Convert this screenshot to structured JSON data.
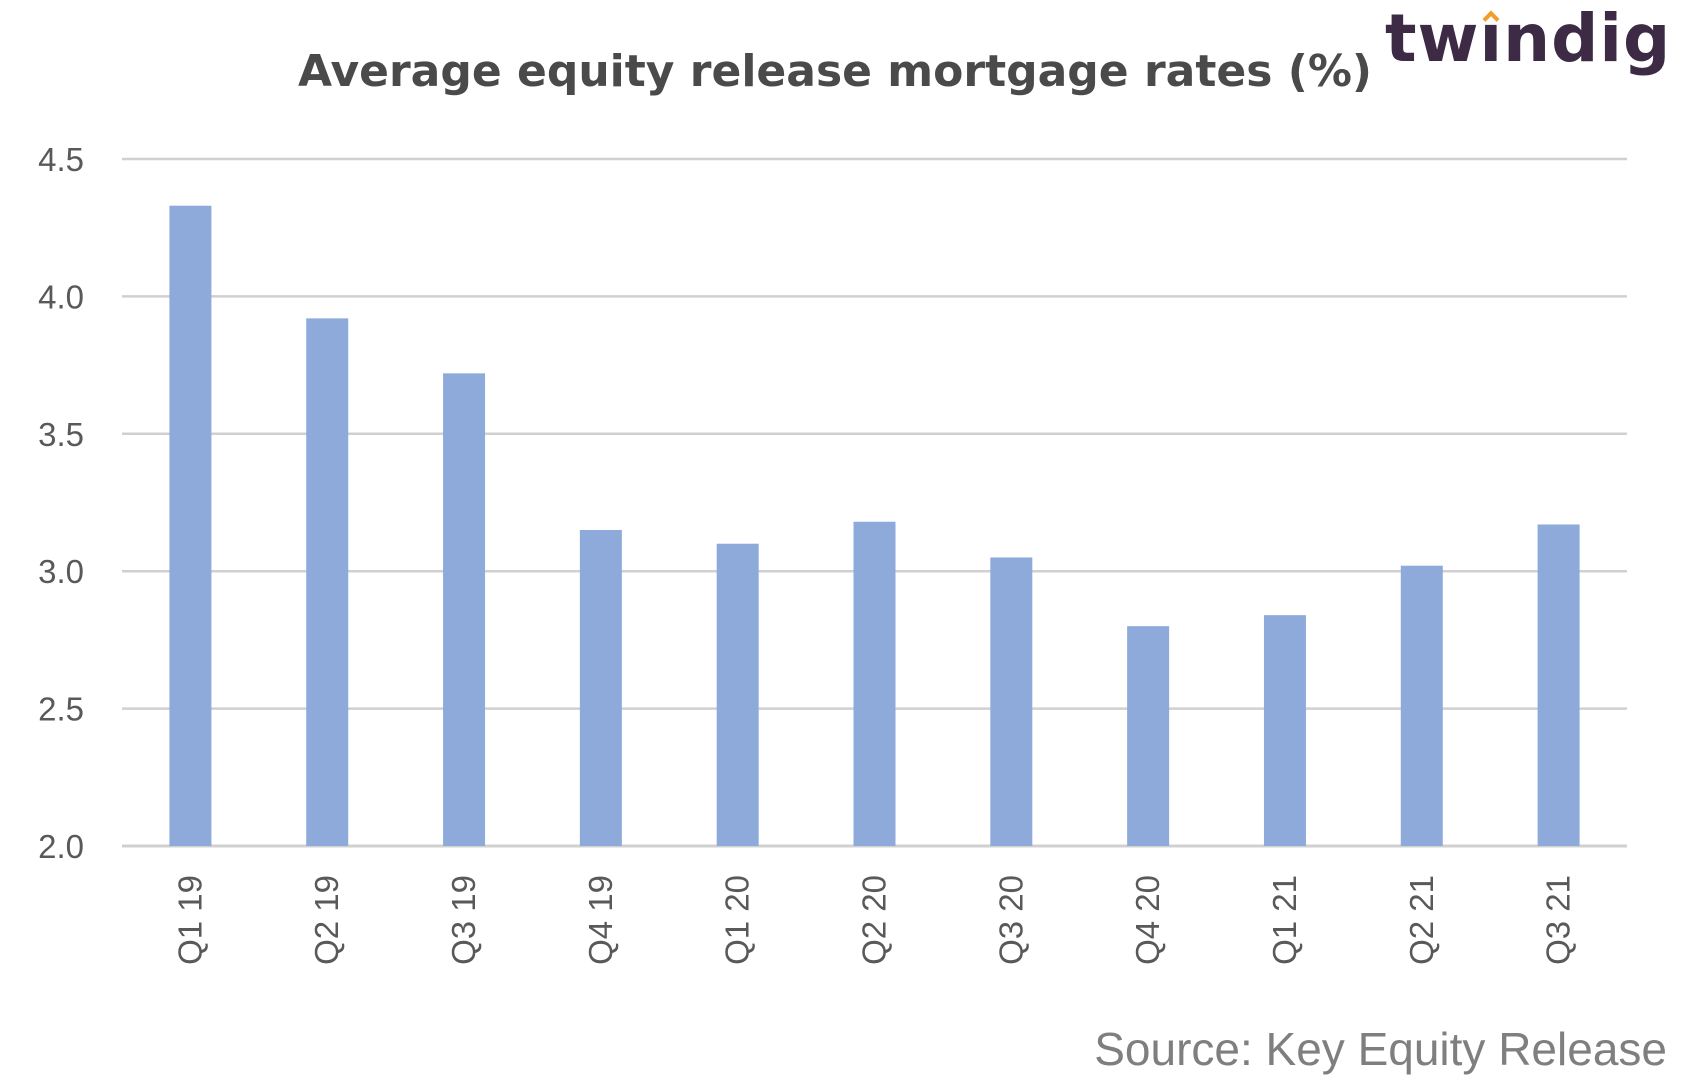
{
  "chart_data": {
    "type": "bar",
    "title": "Average equity release mortgage rates (%)",
    "categories": [
      "Q1 19",
      "Q2 19",
      "Q3 19",
      "Q4 19",
      "Q1 20",
      "Q2 20",
      "Q3 20",
      "Q4 20",
      "Q1 21",
      "Q2 21",
      "Q3 21"
    ],
    "values": [
      4.33,
      3.92,
      3.72,
      3.15,
      3.1,
      3.18,
      3.05,
      2.8,
      2.84,
      3.02,
      3.17
    ],
    "ylim": [
      2.0,
      4.5
    ],
    "yticks": [
      "2.0",
      "2.5",
      "3.0",
      "3.5",
      "4.0",
      "4.5"
    ],
    "xlabel": "",
    "ylabel": "",
    "grid": true,
    "bar_color": "#8eaadb",
    "grid_color": "#d0d0d0"
  },
  "logo": {
    "text_pre": "tw",
    "text_i": "ı",
    "text_post": "ndig",
    "brand_color": "#3d2a45",
    "accent_color": "#f39c2c"
  },
  "source": "Source: Key Equity Release"
}
